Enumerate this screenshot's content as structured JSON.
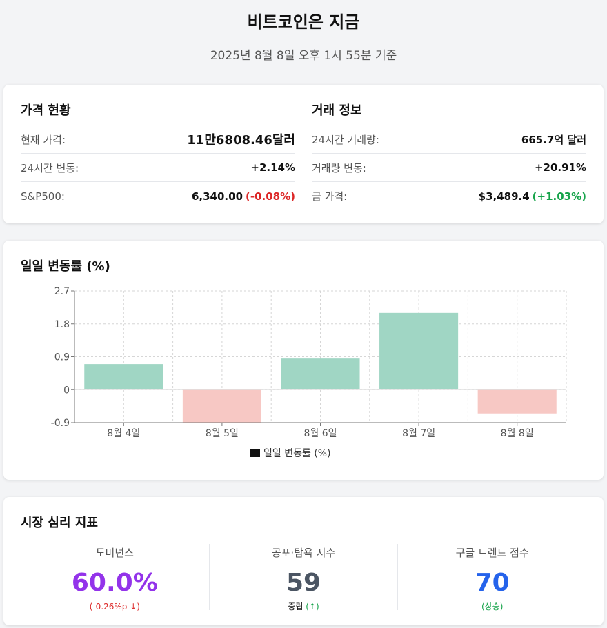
{
  "header": {
    "title": "비트코인은 지금",
    "subtitle": "2025년 8월 8일 오후 1시 55분 기준"
  },
  "price_card": {
    "title": "가격 현황",
    "current_label": "현재 가격:",
    "current_value": "11만6808.46달러",
    "change_label": "24시간 변동:",
    "change_value": "+2.14%",
    "sp_label": "S&P500:",
    "sp_value": "6,340.00",
    "sp_change": "(-0.08%)"
  },
  "trade_card": {
    "title": "거래 정보",
    "volume_label": "24시간 거래량:",
    "volume_value": "665.7억 달러",
    "volume_change_label": "거래량 변동:",
    "volume_change_value": "+20.91%",
    "gold_label": "금 가격:",
    "gold_value": "$3,489.4",
    "gold_change": "(+1.03%)"
  },
  "chart_data": {
    "type": "bar",
    "title": "일일 변동률 (%)",
    "categories": [
      "8월 4일",
      "8월 5일",
      "8월 6일",
      "8월 7일",
      "8월 8일"
    ],
    "series": [
      {
        "name": "일일 변동률 (%)",
        "values": [
          0.7,
          -0.9,
          0.85,
          2.1,
          -0.65
        ]
      }
    ],
    "yticks": [
      "2.7",
      "1.8",
      "0.9",
      "0",
      "-0.9"
    ],
    "ylim": [
      -0.9,
      2.7
    ],
    "grid": true,
    "legend": "bottom",
    "colors": {
      "positive": "#a0d6c4",
      "negative": "#f7c8c4"
    }
  },
  "sentiment": {
    "title": "시장 심리 지표",
    "items": [
      {
        "label": "도미넌스",
        "value": "60.0%",
        "sub": "(-0.26%p ↓)"
      },
      {
        "label": "공포·탐욕 지수",
        "value": "59",
        "sub_main": "중립",
        "sub_extra": "(↑)"
      },
      {
        "label": "구글 트렌드 점수",
        "value": "70",
        "sub": "(상승)"
      }
    ]
  }
}
